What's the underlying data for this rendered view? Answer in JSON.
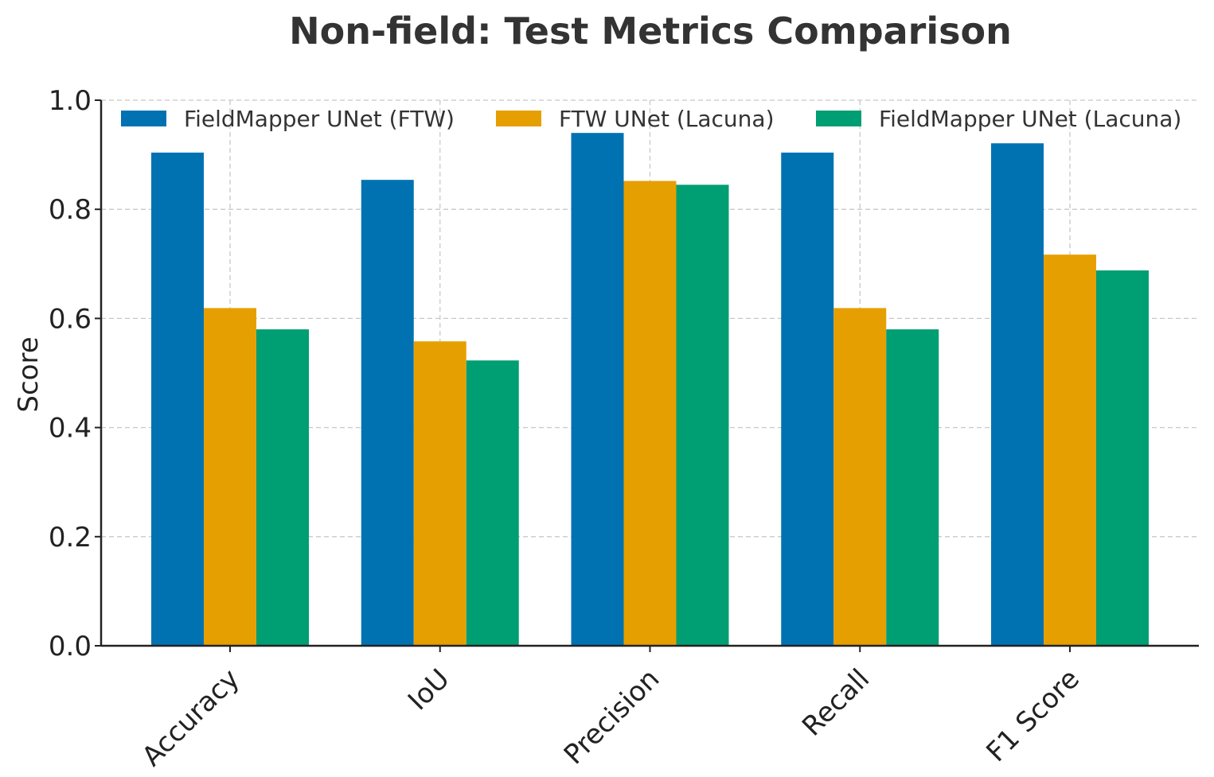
{
  "chart_data": {
    "type": "bar",
    "title": "Non-field: Test Metrics Comparison",
    "xlabel": "",
    "ylabel": "Score",
    "ylim": [
      0,
      1.0
    ],
    "yticks": [
      "0.0",
      "0.2",
      "0.4",
      "0.6",
      "0.8",
      "1.0"
    ],
    "grid": true,
    "legend_position": "top",
    "categories": [
      "Accuracy",
      "IoU",
      "Precision",
      "Recall",
      "F1 Score"
    ],
    "series": [
      {
        "name": "FieldMapper UNet (FTW)",
        "color": "#0072B2",
        "values": [
          0.904,
          0.854,
          0.94,
          0.904,
          0.921
        ]
      },
      {
        "name": "FTW UNet (Lacuna)",
        "color": "#E69F00",
        "values": [
          0.619,
          0.558,
          0.852,
          0.619,
          0.717
        ]
      },
      {
        "name": "FieldMapper UNet (Lacuna)",
        "color": "#009E73",
        "values": [
          0.58,
          0.523,
          0.845,
          0.58,
          0.688
        ]
      }
    ]
  }
}
